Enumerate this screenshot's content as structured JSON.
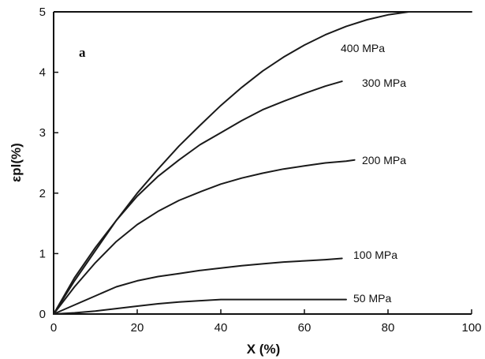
{
  "chart_data": {
    "type": "line",
    "panel_label": "a",
    "xlabel": "X (%)",
    "ylabel": "εpl(%)",
    "xlim": [
      0,
      100
    ],
    "ylim": [
      0,
      5
    ],
    "x_ticks": [
      0,
      20,
      40,
      60,
      80,
      100
    ],
    "x_tick_labels": [
      "0",
      "20",
      "40",
      "60",
      "80",
      "100"
    ],
    "y_ticks": [
      0,
      1,
      2,
      3,
      4,
      5
    ],
    "y_tick_labels": [
      "0",
      "1",
      "2",
      "3",
      "4",
      "5"
    ],
    "grid": false,
    "series": [
      {
        "name": "400 MPa",
        "x": [
          0,
          5,
          10,
          15,
          20,
          25,
          30,
          35,
          40,
          45,
          50,
          55,
          60,
          65,
          70,
          75,
          80,
          85,
          90,
          95,
          100
        ],
        "y": [
          0,
          0.55,
          1.05,
          1.55,
          2.0,
          2.4,
          2.78,
          3.12,
          3.45,
          3.75,
          4.02,
          4.25,
          4.45,
          4.62,
          4.76,
          4.87,
          4.95,
          5.0,
          5.0,
          5.0,
          5.0
        ]
      },
      {
        "name": "300 MPa",
        "x": [
          0,
          5,
          10,
          15,
          20,
          25,
          30,
          35,
          40,
          45,
          50,
          55,
          60,
          65,
          69
        ],
        "y": [
          0,
          0.6,
          1.1,
          1.55,
          1.95,
          2.28,
          2.55,
          2.8,
          3.0,
          3.2,
          3.38,
          3.52,
          3.65,
          3.77,
          3.85
        ]
      },
      {
        "name": "200 MPa",
        "x": [
          0,
          5,
          10,
          15,
          20,
          25,
          30,
          35,
          40,
          45,
          50,
          55,
          60,
          65,
          70,
          72
        ],
        "y": [
          0,
          0.45,
          0.85,
          1.2,
          1.48,
          1.7,
          1.88,
          2.02,
          2.15,
          2.25,
          2.33,
          2.4,
          2.45,
          2.5,
          2.53,
          2.55
        ]
      },
      {
        "name": "100 MPa",
        "x": [
          0,
          5,
          10,
          15,
          20,
          25,
          30,
          35,
          40,
          45,
          50,
          55,
          60,
          65,
          69
        ],
        "y": [
          0,
          0.15,
          0.3,
          0.45,
          0.55,
          0.62,
          0.67,
          0.72,
          0.76,
          0.8,
          0.83,
          0.86,
          0.88,
          0.9,
          0.92
        ]
      },
      {
        "name": "50 MPa",
        "x": [
          0,
          5,
          10,
          15,
          20,
          25,
          30,
          35,
          40,
          45,
          50,
          55,
          60,
          65,
          70
        ],
        "y": [
          0,
          0.02,
          0.05,
          0.09,
          0.13,
          0.17,
          0.2,
          0.22,
          0.24,
          0.24,
          0.24,
          0.24,
          0.24,
          0.24,
          0.24
        ]
      }
    ]
  }
}
